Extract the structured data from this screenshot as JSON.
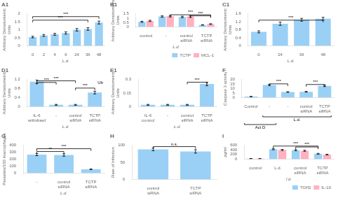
{
  "chart_data": [
    {
      "type": "bar",
      "title": "A1",
      "categories": [
        "0",
        "2",
        "4",
        "6",
        "24",
        "36",
        "48"
      ],
      "values": [
        0.55,
        0.65,
        0.72,
        0.8,
        1.0,
        1.05,
        1.45
      ],
      "errors": [
        0.05,
        0.06,
        0.06,
        0.07,
        0.08,
        0.08,
        0.09
      ],
      "xlabel": "L.d.",
      "ylabel": "Arbitrary Densitometric\nUnits",
      "ylim": [
        0,
        2.0
      ],
      "yticks": [
        0,
        0.5,
        1,
        1.5,
        2
      ],
      "grid": false,
      "annotations": [
        {
          "text": "***",
          "from": 0,
          "to": 5,
          "y": 1.6
        },
        {
          "text": "***",
          "from": 0,
          "to": 6,
          "y": 1.82
        }
      ]
    },
    {
      "type": "bar",
      "title": "B1",
      "categories": [
        "control",
        "-",
        "control\nsiRNA",
        "TCTP\nsiRNA"
      ],
      "series": [
        {
          "name": "TCTP",
          "values": [
            0.58,
            1.18,
            1.13,
            0.22
          ],
          "errors": [
            0.06,
            0.08,
            0.08,
            0.03
          ]
        },
        {
          "name": "MCL-1",
          "values": [
            0.68,
            1.22,
            1.18,
            0.32
          ],
          "errors": [
            0.07,
            0.09,
            0.09,
            0.04
          ]
        }
      ],
      "xlabel": "L.d.",
      "ylabel": "Arbitrary Densitometric\nUnits",
      "ylim": [
        0,
        1.5
      ],
      "yticks": [
        0,
        0.5,
        1,
        1.5
      ],
      "grid": false,
      "legend": "bottom",
      "annotations": [
        {
          "text": "***",
          "from": 1,
          "to": 3,
          "y": 1.38,
          "series": "MCL-1"
        },
        {
          "text": "***",
          "from": 2,
          "to": 3,
          "y": 1.26,
          "series": "MCL-1"
        }
      ]
    },
    {
      "type": "bar",
      "title": "C1",
      "categories": [
        "0",
        "24",
        "36",
        "48"
      ],
      "values": [
        0.7,
        1.1,
        1.3,
        1.35
      ],
      "errors": [
        0.05,
        0.08,
        0.07,
        0.07
      ],
      "xlabel": "L.d.",
      "ylabel": "Arbitrary Densitometric\nUnits",
      "ylim": [
        0,
        1.6
      ],
      "yticks": [
        0,
        0.4,
        0.8,
        1.2,
        1.6
      ],
      "grid": false,
      "annotations": [
        {
          "text": "***",
          "from": 0,
          "to": 3,
          "y": 1.28
        }
      ]
    },
    {
      "type": "bar",
      "title": "D1",
      "categories": [
        "IL-6\nwithdrawl",
        "-",
        "control\nsiRNA",
        "TCTP\nsiRNA"
      ],
      "values": [
        1.1,
        0.08,
        0.08,
        0.62
      ],
      "errors": [
        0.08,
        0.02,
        0.02,
        0.06
      ],
      "xlabel": "L.d.",
      "ylabel": "Arbitrary Densitometric\nUnits",
      "ylim": [
        0,
        1.2
      ],
      "yticks": [
        0,
        0.4,
        0.8,
        1.2
      ],
      "grid": false,
      "annotations": [
        {
          "text": "Ub"
        },
        {
          "text": "***",
          "from": 0,
          "to": 1,
          "y": 1.07
        },
        {
          "text": "***",
          "from": 0,
          "to": 2,
          "y": 1.14
        },
        {
          "text": "***",
          "from": 2,
          "to": 3,
          "y": 0.82
        }
      ]
    },
    {
      "type": "bar",
      "title": "E1",
      "categories": [
        "IL-6\ncontrol",
        "-",
        "control\nsiRNA",
        "TCTP\nsiRNA"
      ],
      "values": [
        0.02,
        0.02,
        0.02,
        0.25
      ],
      "errors": [
        0.005,
        0.005,
        0.005,
        0.02
      ],
      "xlabel": "L.d.",
      "ylabel": "Arbitrary Densitometric\nUnits",
      "ylim": [
        0,
        0.3
      ],
      "yticks": [
        0,
        0.15,
        0.3
      ],
      "grid": false,
      "annotations": [
        {
          "text": "***",
          "from": 2,
          "to": 3,
          "y": 0.27
        }
      ]
    },
    {
      "type": "bar",
      "title": "F",
      "categories": [
        "Control",
        "-",
        "-",
        "control\nsiRNA",
        "TCTP\nsiRNA"
      ],
      "values": [
        1.2,
        14.0,
        6.2,
        6.5,
        13.0
      ],
      "errors": [
        0.2,
        0.7,
        0.4,
        0.5,
        0.8
      ],
      "ylabel": "Caspase 3 activity",
      "ylim": [
        0,
        20
      ],
      "yticks": [
        0,
        5,
        10,
        15,
        20
      ],
      "grid": false,
      "annotations": [
        {
          "text": "***",
          "from": 1,
          "to": 2,
          "y": 15.2
        },
        {
          "text": "***",
          "from": 3,
          "to": 4,
          "y": 14.5
        }
      ],
      "group_labels": [
        {
          "text": "L.d.",
          "from": 1,
          "to": 4
        },
        {
          "text": "Act D",
          "from": 0,
          "to": 1
        }
      ]
    },
    {
      "type": "bar",
      "title": "G",
      "categories": [
        "-",
        "control\nsiRNA",
        "TCTP\nsiRNA"
      ],
      "values": [
        265,
        260,
        55
      ],
      "errors": [
        15,
        18,
        6
      ],
      "xlabel": "L.d.",
      "ylabel": "Parasites/100 macrophages",
      "ylim": [
        0,
        400
      ],
      "yticks": [
        0,
        100,
        200,
        300,
        400
      ],
      "grid": false,
      "annotations": [
        {
          "text": "**",
          "from": 0,
          "to": 1,
          "y": 310
        },
        {
          "text": "***",
          "from": 0,
          "to": 2,
          "y": 350
        }
      ]
    },
    {
      "type": "bar",
      "title": "H",
      "categories": [
        "control\nsiRNA",
        "TCTP\nsiRNA"
      ],
      "values": [
        88,
        82
      ],
      "errors": [
        4,
        5
      ],
      "ylabel": "Rate of Infection",
      "ylim": [
        0,
        100
      ],
      "yticks": [
        0,
        50,
        100
      ],
      "grid": false,
      "annotations": [
        {
          "text": "n.s.",
          "from": 0,
          "to": 1,
          "y": 96
        }
      ]
    },
    {
      "type": "bar",
      "title": "I",
      "categories": [
        "control",
        "L.d.",
        "control\nsiRNA",
        "TCTP\nsiRNA"
      ],
      "series": [
        {
          "name": "TGFβ",
          "values": [
            20,
            430,
            385,
            230
          ],
          "errors": [
            4,
            28,
            25,
            18
          ]
        },
        {
          "name": "IL-10",
          "values": [
            18,
            395,
            360,
            195
          ],
          "errors": [
            3,
            26,
            24,
            16
          ]
        }
      ],
      "xlabel": "l.d.",
      "ylabel": "pg/ml",
      "ylim": [
        0,
        600
      ],
      "yticks": [
        0,
        200,
        400,
        600
      ],
      "grid": false,
      "legend": "bottom",
      "annotations": [
        {
          "text": "***",
          "from": 2,
          "to": 3,
          "y": 525
        },
        {
          "text": "***",
          "from": 1,
          "to": 3,
          "y": 565
        }
      ]
    }
  ]
}
